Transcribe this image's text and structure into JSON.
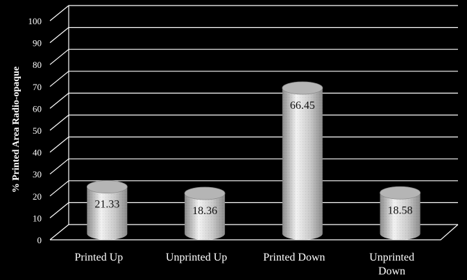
{
  "chart_data": {
    "type": "bar",
    "style": "3d-cylinder",
    "categories": [
      "Printed Up",
      "Unprinted Up",
      "Printed Down",
      "Unprinted Down"
    ],
    "category_lines": [
      [
        "Printed Up"
      ],
      [
        "Unprinted Up"
      ],
      [
        "Printed Down"
      ],
      [
        "Unprinted",
        "Down"
      ]
    ],
    "values": [
      21.33,
      18.36,
      66.45,
      18.58
    ],
    "data_labels": [
      "21.33",
      "18.36",
      "66.45",
      "18.58"
    ],
    "ylabel": "% Printed Area Radio-opaque",
    "xlabel": "",
    "title": "",
    "ylim": [
      0,
      100
    ],
    "yticks": [
      0,
      10,
      20,
      30,
      40,
      50,
      60,
      70,
      80,
      90,
      100
    ],
    "grid": true,
    "legend": "none",
    "colors": {
      "background": "#000000",
      "gridlines": "#ffffff",
      "text": "#ffffff",
      "bar_fill": "#c8c8c8",
      "bar_highlight": "#f2f2f2",
      "bar_shadow": "#8a8a8a",
      "bar_top": "#b5b5b5",
      "label_text": "#111111"
    }
  }
}
